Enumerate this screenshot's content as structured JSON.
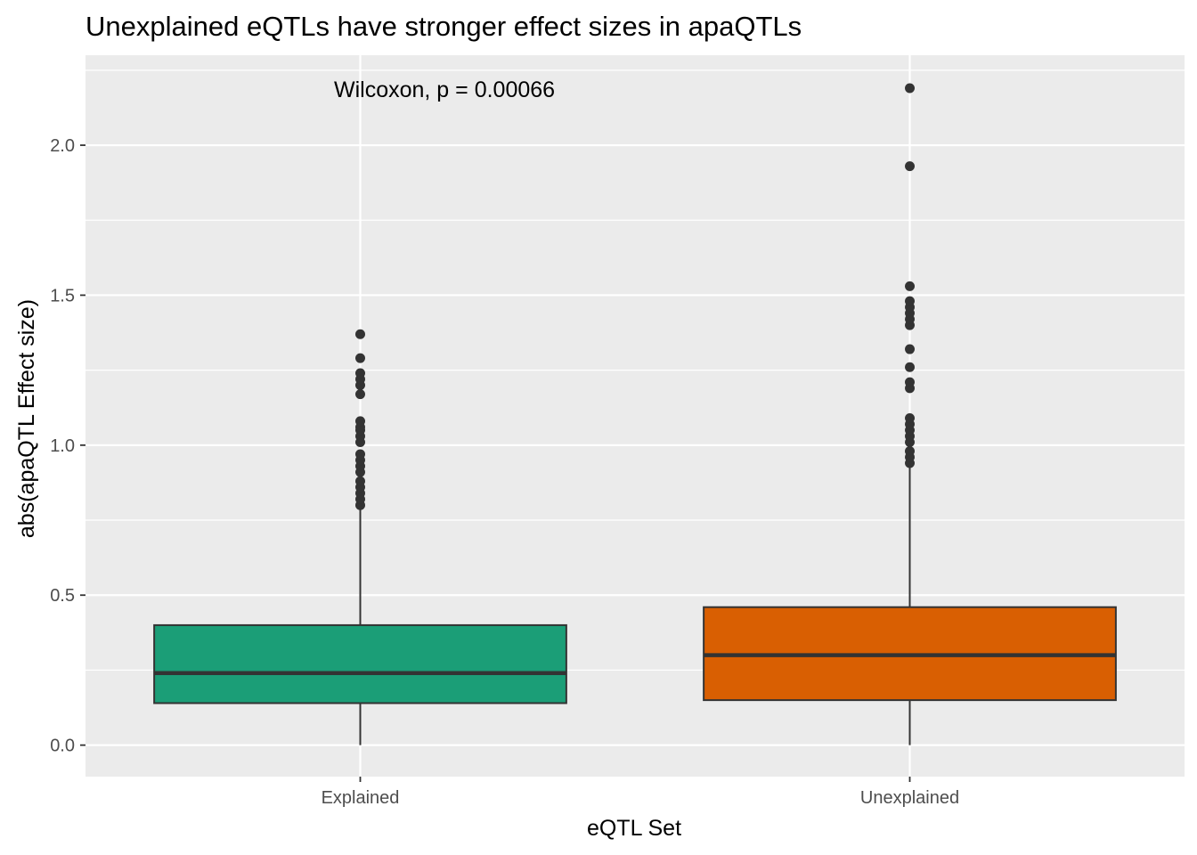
{
  "chart_data": {
    "type": "boxplot",
    "title": "Unexplained eQTLs have stronger effect sizes in apaQTLs",
    "xlabel": "eQTL Set",
    "ylabel": "abs(apaQTL Effect size)",
    "ylim": [
      -0.105,
      2.3
    ],
    "yticks": [
      0.0,
      0.5,
      1.0,
      1.5,
      2.0
    ],
    "ytick_labels": [
      "0.0",
      "0.5",
      "1.0",
      "1.5",
      "2.0"
    ],
    "categories": [
      "Explained",
      "Unexplained"
    ],
    "grid": true,
    "legend": "none",
    "annotation": "Wilcoxon, p = 0.00066",
    "background_color": "#ebebeb",
    "boxes": [
      {
        "category": "Explained",
        "color": "#1b9e77",
        "whisker_low": 0.0,
        "q1": 0.14,
        "median": 0.24,
        "q3": 0.4,
        "whisker_high": 0.79,
        "outliers": [
          0.8,
          0.82,
          0.84,
          0.86,
          0.88,
          0.91,
          0.93,
          0.95,
          0.97,
          1.01,
          1.03,
          1.05,
          1.06,
          1.08,
          1.17,
          1.2,
          1.22,
          1.24,
          1.29,
          1.37
        ]
      },
      {
        "category": "Unexplained",
        "color": "#d95f02",
        "whisker_low": 0.0,
        "q1": 0.15,
        "median": 0.3,
        "q3": 0.46,
        "whisker_high": 0.93,
        "outliers": [
          0.94,
          0.96,
          0.98,
          1.01,
          1.03,
          1.05,
          1.07,
          1.09,
          1.19,
          1.21,
          1.26,
          1.32,
          1.4,
          1.42,
          1.44,
          1.46,
          1.48,
          1.53,
          1.93,
          2.19
        ]
      }
    ]
  }
}
